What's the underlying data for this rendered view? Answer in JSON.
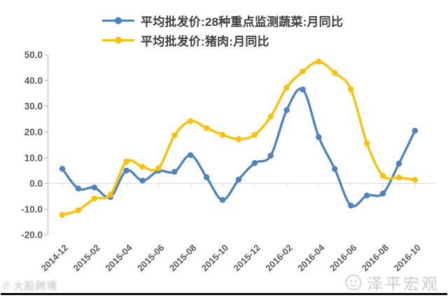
{
  "chart_data": {
    "type": "line",
    "smoothed": true,
    "title": "",
    "xlabel": "",
    "ylabel": "",
    "legend_position": "top-left",
    "grid": "zero-line-only",
    "ylim": [
      -20,
      50
    ],
    "ytick_labels": [
      "50.0",
      "40.0",
      "30.0",
      "20.0",
      "10.0",
      "0.0",
      "-10.0",
      "-20.0"
    ],
    "xtick_labels": [
      "2014-12",
      "2015-02",
      "2015-04",
      "2015-06",
      "2015-08",
      "2015-10",
      "2015-12",
      "2016-02",
      "2016-04",
      "2016-06",
      "2016-08",
      "2016-10"
    ],
    "categories": [
      "2014-12",
      "2015-01",
      "2015-02",
      "2015-03",
      "2015-04",
      "2015-05",
      "2015-06",
      "2015-07",
      "2015-08",
      "2015-09",
      "2015-10",
      "2015-11",
      "2015-12",
      "2016-01",
      "2016-02",
      "2016-03",
      "2016-04",
      "2016-05",
      "2016-06",
      "2016-07",
      "2016-08",
      "2016-09",
      "2016-10"
    ],
    "series": [
      {
        "name": "平均批发价:28种重点监测蔬菜:月同比",
        "color": "#4A82C4",
        "values": [
          5.7,
          -2.0,
          -1.6,
          -5.3,
          5.0,
          1.1,
          4.9,
          4.5,
          11.0,
          2.4,
          -6.4,
          1.5,
          7.9,
          10.8,
          28.5,
          36.5,
          18.0,
          5.6,
          -8.6,
          -4.7,
          -3.9,
          7.7,
          20.5
        ]
      },
      {
        "name": "平均批发价:猪肉:月同比",
        "color": "#FFC000",
        "values": [
          -12.2,
          -10.4,
          -5.9,
          -4.4,
          8.5,
          6.5,
          5.9,
          18.7,
          24.2,
          21.5,
          18.9,
          17.2,
          18.9,
          26.0,
          37.3,
          43.5,
          47.3,
          42.9,
          36.6,
          15.6,
          3.0,
          2.3,
          1.4
        ]
      }
    ]
  },
  "colors": {
    "axis": "#BFBFBF",
    "zero_line": "#D9D9D9",
    "tick_label": "#595959",
    "legend_text": "#3F3F3F",
    "watermark": "#C7C7C7",
    "bottom_line": "#0B0B0B"
  },
  "watermark_left": {
    "icon": "hand-logo-icon",
    "text": "大股跨境"
  },
  "watermark_right": {
    "icon": "circle-face-logo-icon",
    "text": "泽平宏观"
  }
}
